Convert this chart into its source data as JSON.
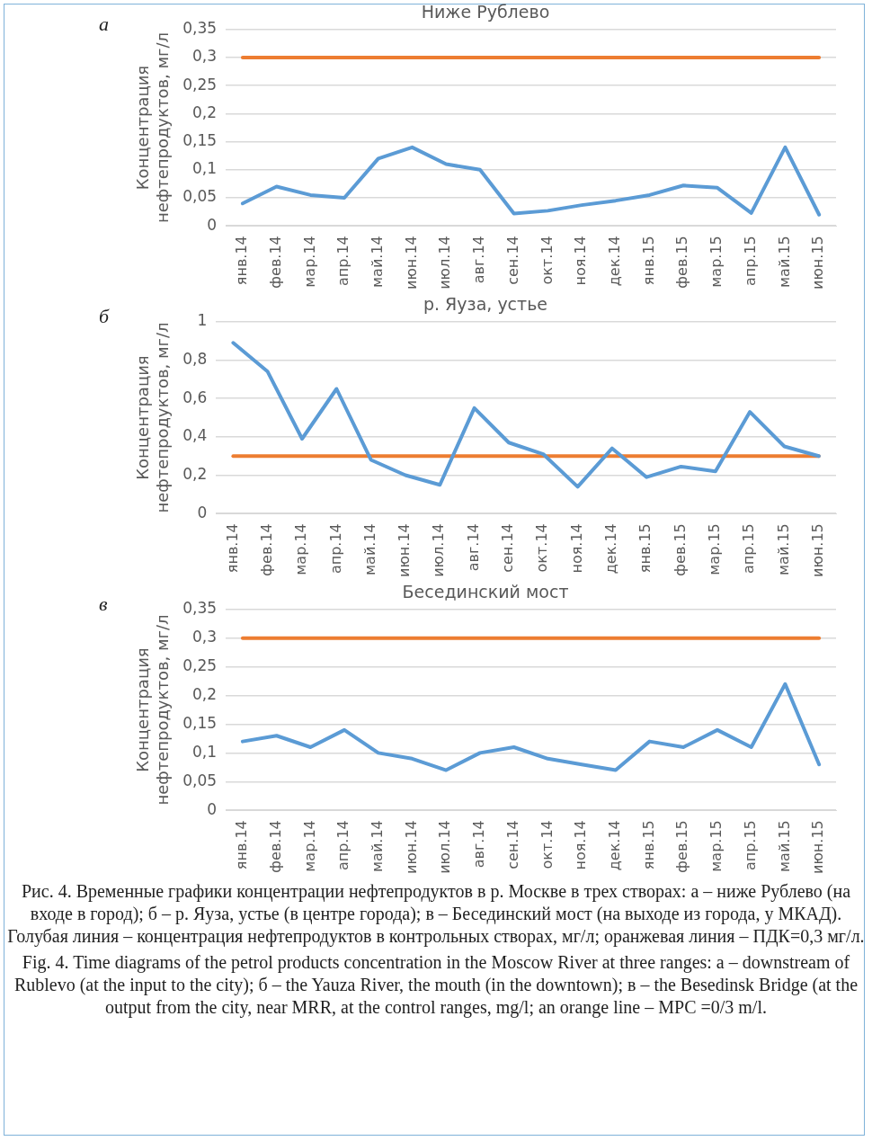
{
  "chart_data": [
    {
      "type": "line",
      "title": "Ниже Рублево",
      "ylabel": "Концентрация нефтепродуктов, мг/л",
      "annotations": [
        "а"
      ],
      "categories": [
        "янв.14",
        "фев.14",
        "мар.14",
        "апр.14",
        "май.14",
        "июн.14",
        "июл.14",
        "авг.14",
        "сен.14",
        "окт.14",
        "ноя.14",
        "дек.14",
        "янв.15",
        "фев.15",
        "мар.15",
        "апр.15",
        "май.15",
        "июн.15"
      ],
      "series": [
        {
          "color": "#5b9bd5",
          "values": [
            0.04,
            0.07,
            0.055,
            0.05,
            0.12,
            0.14,
            0.11,
            0.1,
            0.022,
            0.027,
            0.037,
            0.045,
            0.055,
            0.072,
            0.068,
            0.023,
            0.14,
            0.02
          ]
        },
        {
          "color": "#ed7d31",
          "values": [
            0.3,
            0.3,
            0.3,
            0.3,
            0.3,
            0.3,
            0.3,
            0.3,
            0.3,
            0.3,
            0.3,
            0.3,
            0.3,
            0.3,
            0.3,
            0.3,
            0.3,
            0.3
          ]
        }
      ],
      "ylim": [
        0,
        0.35
      ],
      "yticks": [
        {
          "value": 0,
          "label": "0"
        },
        {
          "value": 0.05,
          "label": "0,05"
        },
        {
          "value": 0.1,
          "label": "0,1"
        },
        {
          "value": 0.15,
          "label": "0,15"
        },
        {
          "value": 0.2,
          "label": "0,2"
        },
        {
          "value": 0.25,
          "label": "0,25"
        },
        {
          "value": 0.3,
          "label": "0,3"
        },
        {
          "value": 0.35,
          "label": "0,35"
        }
      ],
      "grid": "y",
      "legend": false,
      "marker": "none",
      "line_style": "solid"
    },
    {
      "type": "line",
      "title": "р. Яуза, устье",
      "ylabel": "Концентрация нефтепродуктов, мг/л",
      "annotations": [
        "б"
      ],
      "categories": [
        "янв.14",
        "фев.14",
        "мар.14",
        "апр.14",
        "май.14",
        "июн.14",
        "июл.14",
        "авг.14",
        "сен.14",
        "окт.14",
        "ноя.14",
        "дек.14",
        "янв.15",
        "фев.15",
        "мар.15",
        "апр.15",
        "май.15",
        "июн.15"
      ],
      "series": [
        {
          "color": "#5b9bd5",
          "values": [
            0.89,
            0.74,
            0.39,
            0.65,
            0.28,
            0.2,
            0.15,
            0.55,
            0.37,
            0.31,
            0.14,
            0.34,
            0.19,
            0.245,
            0.22,
            0.53,
            0.35,
            0.3
          ]
        },
        {
          "color": "#ed7d31",
          "values": [
            0.3,
            0.3,
            0.3,
            0.3,
            0.3,
            0.3,
            0.3,
            0.3,
            0.3,
            0.3,
            0.3,
            0.3,
            0.3,
            0.3,
            0.3,
            0.3,
            0.3,
            0.3
          ]
        }
      ],
      "ylim": [
        0,
        1
      ],
      "yticks": [
        {
          "value": 0,
          "label": "0"
        },
        {
          "value": 0.2,
          "label": "0,2"
        },
        {
          "value": 0.4,
          "label": "0,4"
        },
        {
          "value": 0.6,
          "label": "0,6"
        },
        {
          "value": 0.8,
          "label": "0,8"
        },
        {
          "value": 1,
          "label": "1"
        }
      ],
      "grid": "y",
      "legend": false,
      "marker": "none",
      "line_style": "solid"
    },
    {
      "type": "line",
      "title": "Бесединский мост",
      "ylabel": "Концентрация нефтепродуктов, мг/л",
      "annotations": [
        "в",
        "Рис. 4. Временные графики концентрации нефтепродуктов в р. Москве в трех створах: а – ниже Рублево (на входе в город); б – р. Яуза, устье (в центре города); в – Бесединский мост (на выходе из города, у МКАД). Голубая линия – концентрация нефтепродуктов в контрольных створах, мг/л; оранжевая линия – ПДК=0,3 мг/л.",
        "Fig. 4. Time diagrams of the petrol products concentration in the Moscow River at three ranges: а – downstream of Rublevo (at the input to the city); б – the Yauza River, the mouth (in the downtown); в – the Besedinsk Bridge (at the output from the city, near MRR, at the control ranges, mg/l; an orange line – MPC =0/3 m/l."
      ],
      "categories": [
        "янв.14",
        "фев.14",
        "мар.14",
        "апр.14",
        "май.14",
        "июн.14",
        "июл.14",
        "авг.14",
        "сен.14",
        "окт.14",
        "ноя.14",
        "дек.14",
        "янв.15",
        "фев.15",
        "мар.15",
        "апр.15",
        "май.15",
        "июн.15"
      ],
      "series": [
        {
          "color": "#5b9bd5",
          "values": [
            0.12,
            0.13,
            0.11,
            0.14,
            0.1,
            0.09,
            0.07,
            0.1,
            0.11,
            0.09,
            0.08,
            0.07,
            0.12,
            0.11,
            0.14,
            0.11,
            0.22,
            0.08
          ]
        },
        {
          "color": "#ed7d31",
          "values": [
            0.3,
            0.3,
            0.3,
            0.3,
            0.3,
            0.3,
            0.3,
            0.3,
            0.3,
            0.3,
            0.3,
            0.3,
            0.3,
            0.3,
            0.3,
            0.3,
            0.3,
            0.3
          ]
        }
      ],
      "ylim": [
        0,
        0.35
      ],
      "yticks": [
        {
          "value": 0,
          "label": "0"
        },
        {
          "value": 0.05,
          "label": "0,05"
        },
        {
          "value": 0.1,
          "label": "0,1"
        },
        {
          "value": 0.15,
          "label": "0,15"
        },
        {
          "value": 0.2,
          "label": "0,2"
        },
        {
          "value": 0.25,
          "label": "0,25"
        },
        {
          "value": 0.3,
          "label": "0,3"
        },
        {
          "value": 0.35,
          "label": "0,35"
        }
      ],
      "grid": "y",
      "legend": false,
      "marker": "none",
      "line_style": "solid"
    }
  ]
}
